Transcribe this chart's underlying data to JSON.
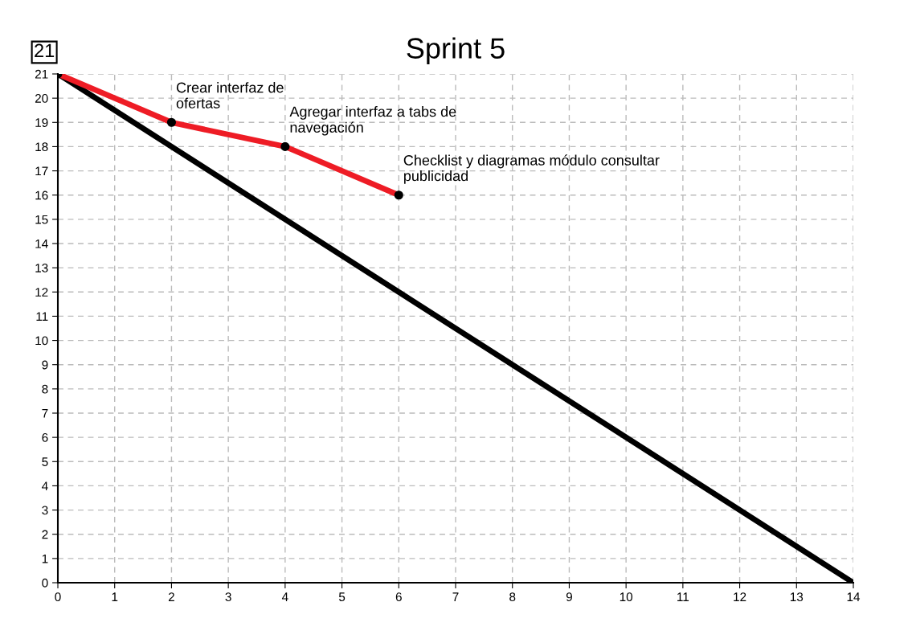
{
  "chart_data": {
    "type": "line",
    "title": "Sprint 5",
    "xlim": [
      0,
      14
    ],
    "ylim": [
      0,
      21
    ],
    "xticks": [
      0,
      1,
      2,
      3,
      4,
      5,
      6,
      7,
      8,
      9,
      10,
      11,
      12,
      13,
      14
    ],
    "yticks": [
      0,
      1,
      2,
      3,
      4,
      5,
      6,
      7,
      8,
      9,
      10,
      11,
      12,
      13,
      14,
      15,
      16,
      17,
      18,
      19,
      20,
      21
    ],
    "grid": true,
    "legend": false,
    "line_style": "solid",
    "series": [
      {
        "color": "#000000",
        "x": [
          0,
          14
        ],
        "values": [
          21,
          0
        ]
      },
      {
        "color": "#ee1c25",
        "x": [
          0,
          2,
          4,
          6
        ],
        "values": [
          21,
          19,
          18,
          16
        ],
        "marker": "circle"
      }
    ],
    "annotations": [
      "21",
      {
        "text": "Crear interfaz de\nofertas",
        "x": 2,
        "y": 19
      },
      {
        "text": "Agregar interfaz a tabs de\nnavegación",
        "x": 4,
        "y": 18
      },
      {
        "text": "Checklist y diagramas módulo consultar\npublicidad",
        "x": 6,
        "y": 16
      }
    ]
  }
}
